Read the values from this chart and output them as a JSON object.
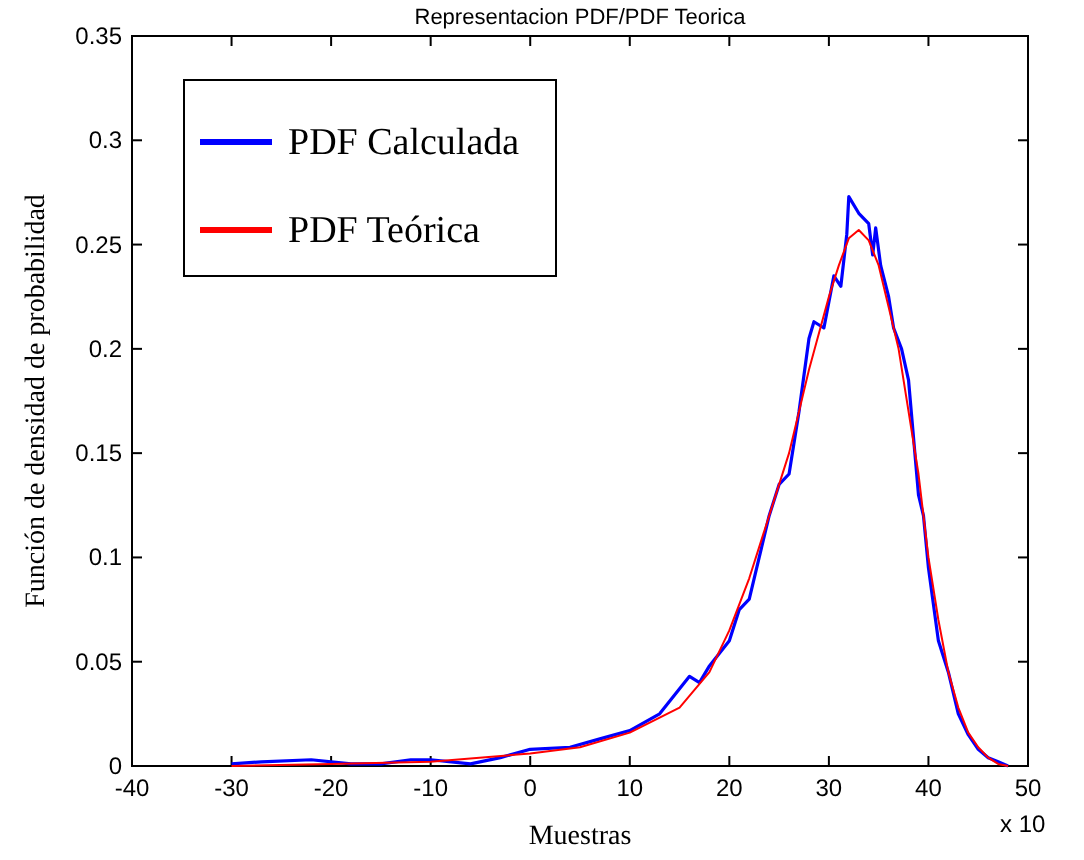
{
  "chart_data": {
    "type": "line",
    "title": "Representacion PDF/PDF Teorica",
    "xlabel": "Muestras",
    "ylabel": "Función de densidad de probabilidad",
    "annotations": [
      "x 10"
    ],
    "xlim": [
      -40,
      50
    ],
    "xticks": [
      -40,
      -30,
      -20,
      -10,
      0,
      10,
      20,
      30,
      40,
      50
    ],
    "ylim": [
      0,
      0.35
    ],
    "yticks": [
      0,
      0.05,
      0.1,
      0.15,
      0.2,
      0.25,
      0.3,
      0.35
    ],
    "grid": false,
    "legend": "top left",
    "marker": "none",
    "line_style": "solid",
    "series": [
      {
        "name": "PDF Calculada",
        "color": "#0000ff",
        "x": [
          -30,
          -27,
          -22,
          -18,
          -15,
          -12,
          -10,
          -6,
          -3,
          0,
          4,
          7,
          10,
          13,
          16,
          17,
          18,
          20,
          21,
          22,
          23,
          24,
          25,
          26,
          27,
          28,
          28.5,
          29.5,
          30.5,
          31.2,
          31.8,
          32,
          33,
          34,
          34.4,
          34.7,
          35.2,
          36,
          36.5,
          37.3,
          38,
          39,
          39.5,
          40,
          41,
          42,
          43,
          44,
          45,
          46,
          47,
          48
        ],
        "values": [
          0.001,
          0.002,
          0.003,
          0.001,
          0.001,
          0.003,
          0.003,
          0.001,
          0.004,
          0.008,
          0.009,
          0.013,
          0.017,
          0.025,
          0.043,
          0.04,
          0.048,
          0.06,
          0.075,
          0.08,
          0.1,
          0.12,
          0.135,
          0.14,
          0.17,
          0.205,
          0.213,
          0.21,
          0.235,
          0.23,
          0.255,
          0.273,
          0.265,
          0.26,
          0.245,
          0.258,
          0.24,
          0.225,
          0.21,
          0.2,
          0.185,
          0.13,
          0.12,
          0.095,
          0.06,
          0.045,
          0.025,
          0.015,
          0.008,
          0.004,
          0.002,
          0
        ]
      },
      {
        "name": "PDF Teórica",
        "color": "#ff0000",
        "x": [
          -30,
          -20,
          -10,
          0,
          5,
          10,
          15,
          18,
          20,
          22,
          24,
          26,
          28,
          30,
          31,
          32,
          33,
          34,
          35,
          36,
          37,
          38,
          39,
          40,
          41,
          42,
          43,
          44,
          45,
          46,
          47,
          48
        ],
        "values": [
          0,
          0.001,
          0.002,
          0.006,
          0.009,
          0.016,
          0.028,
          0.045,
          0.065,
          0.09,
          0.12,
          0.15,
          0.19,
          0.225,
          0.24,
          0.253,
          0.257,
          0.252,
          0.24,
          0.22,
          0.2,
          0.17,
          0.14,
          0.1,
          0.07,
          0.045,
          0.028,
          0.016,
          0.009,
          0.004,
          0.001,
          0
        ]
      }
    ]
  }
}
